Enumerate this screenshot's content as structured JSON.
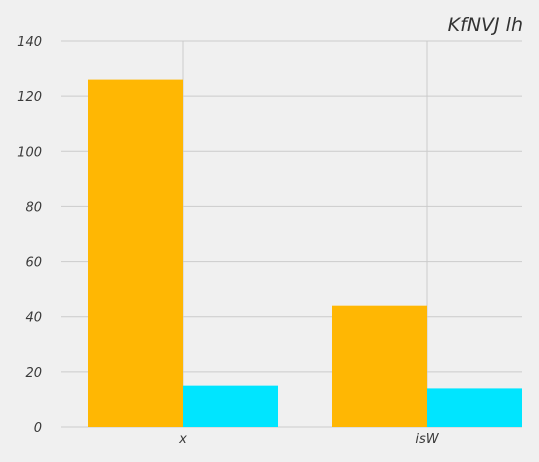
{
  "chart_data": {
    "type": "bar",
    "title": "KfNVJ lh",
    "xlabel": "",
    "ylabel": "",
    "categories": [
      "x",
      "isW"
    ],
    "series": [
      {
        "values": [
          126,
          44
        ],
        "color": "#ffb703"
      },
      {
        "values": [
          15,
          14
        ],
        "color": "#00e5ff"
      }
    ],
    "ylim": [
      0,
      140
    ],
    "yticks": [
      0,
      20,
      40,
      60,
      80,
      100,
      120,
      140
    ],
    "ytick_labels": [
      "0",
      "20",
      "40",
      "60",
      "80",
      "100",
      "120",
      "140"
    ],
    "grid": true,
    "legend": "none",
    "background": "#f0f0f0",
    "grid_color": "#cbcbcb"
  }
}
